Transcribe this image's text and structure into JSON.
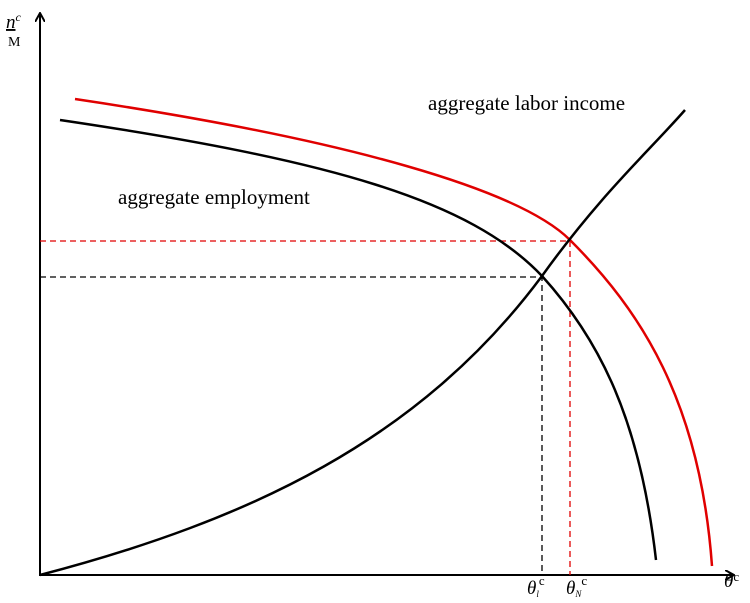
{
  "curves": {
    "labor_income": "aggregate labor income",
    "employment": "aggregate employment"
  },
  "y_axis_label": {
    "numerator": "n",
    "numerator_sup": "c",
    "denominator": "M"
  },
  "x_axis_label": {
    "symbol": "θ",
    "sup": "c"
  },
  "theta_l": {
    "symbol": "θ",
    "sub": "l",
    "sup": "c"
  },
  "theta_n": {
    "symbol": "θ",
    "sub": "N",
    "sup": "c"
  }
}
